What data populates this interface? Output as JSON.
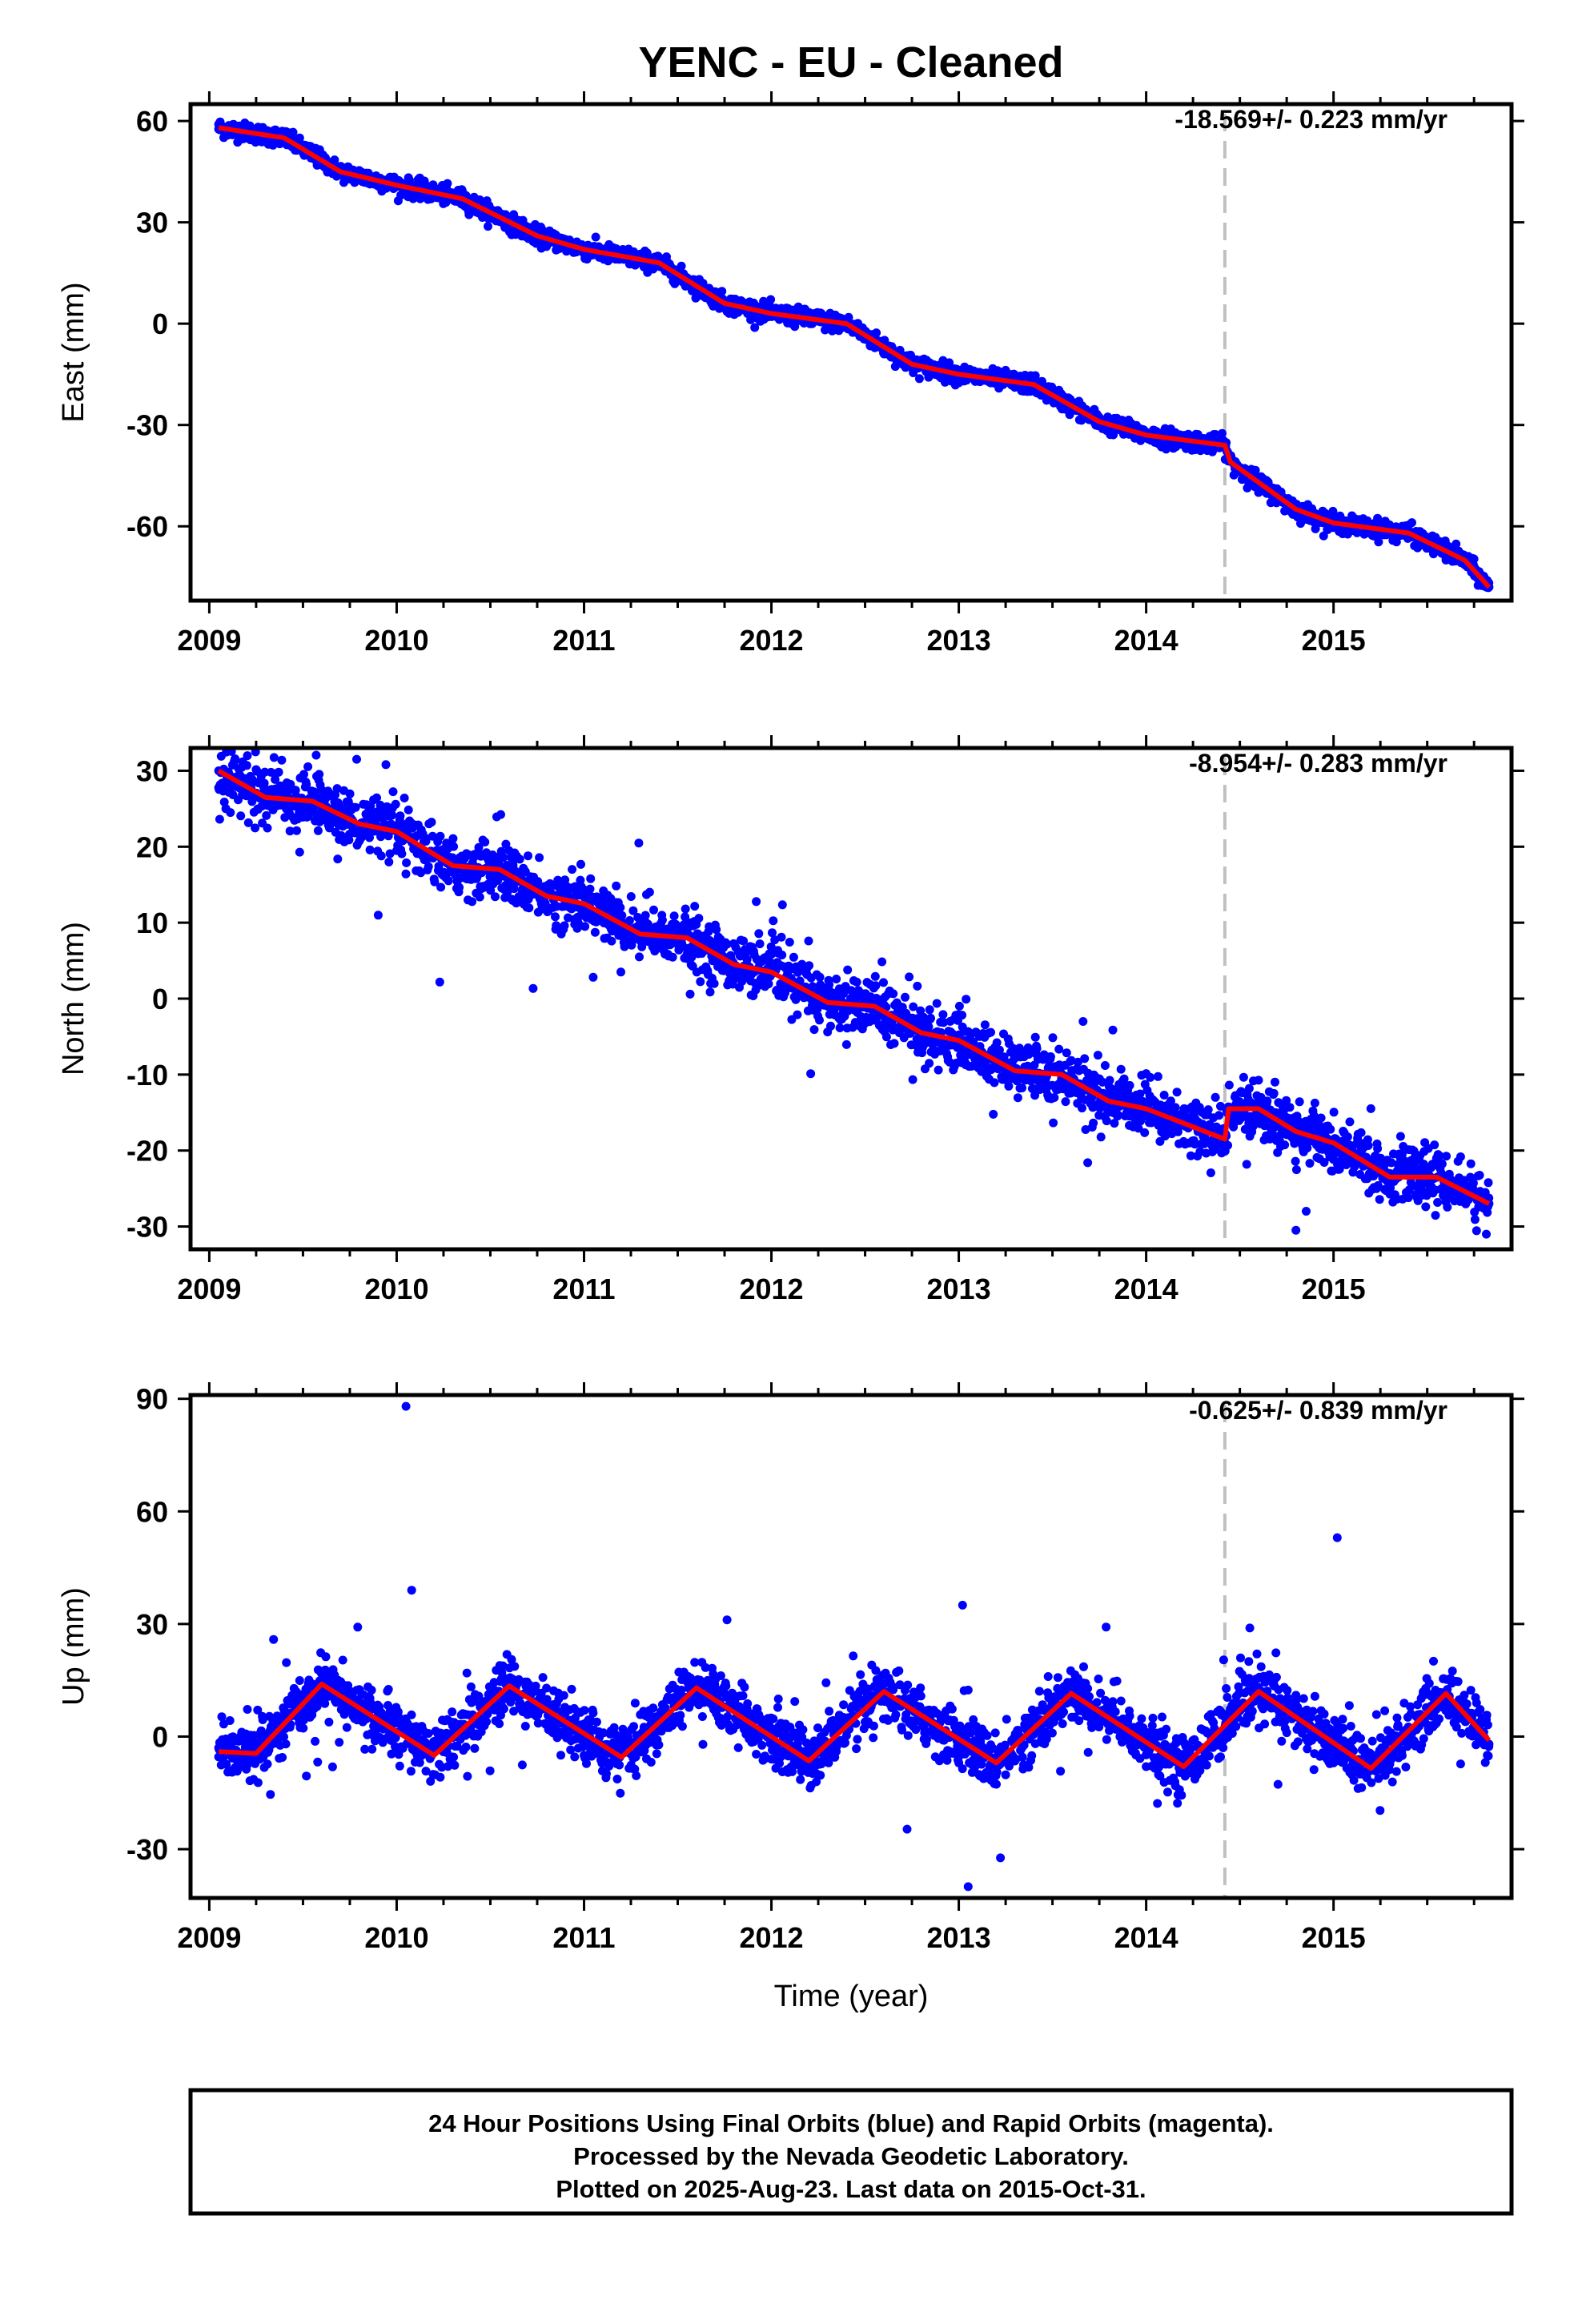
{
  "title": "YENC  - EU - Cleaned",
  "xlabel": "Time (year)",
  "footer": {
    "line1": "24 Hour Positions Using Final Orbits (blue) and Rapid Orbits (magenta).",
    "line2": "Processed by the Nevada Geodetic Laboratory.",
    "line3": "Plotted on 2025-Aug-23. Last data on 2015-Oct-31."
  },
  "colors": {
    "points": "#0000ff",
    "fit": "#ff0000",
    "break_line": "#c0c0c0",
    "frame": "#000000"
  },
  "chart_data": [
    {
      "type": "scatter",
      "component": "east",
      "ylabel": "East (mm)",
      "rate_label": "-18.569+/- 0.223 mm/yr",
      "xlim": [
        2008.9,
        2015.95
      ],
      "ylim": [
        -82,
        65
      ],
      "x_ticks": [
        2009,
        2010,
        2011,
        2012,
        2013,
        2014,
        2015
      ],
      "y_ticks": [
        60,
        30,
        0,
        -30,
        -60
      ],
      "equipment_change": 2014.42,
      "series": [
        {
          "role": "data",
          "values_sampled": [
            [
              2009.05,
              59
            ],
            [
              2009.3,
              56
            ],
            [
              2009.6,
              47
            ],
            [
              2010.0,
              41
            ],
            [
              2010.3,
              38
            ],
            [
              2010.7,
              28
            ],
            [
              2011.0,
              22
            ],
            [
              2011.3,
              19
            ],
            [
              2011.7,
              7
            ],
            [
              2012.0,
              3
            ],
            [
              2012.3,
              0
            ],
            [
              2012.7,
              -12
            ],
            [
              2013.0,
              -15
            ],
            [
              2013.3,
              -18
            ],
            [
              2013.7,
              -28
            ],
            [
              2014.0,
              -33
            ],
            [
              2014.4,
              -36
            ],
            [
              2014.6,
              -50
            ],
            [
              2015.0,
              -60
            ],
            [
              2015.3,
              -62
            ],
            [
              2015.6,
              -70
            ],
            [
              2015.83,
              -78
            ]
          ]
        },
        {
          "role": "fit",
          "values_sampled": [
            [
              2009.05,
              58
            ],
            [
              2009.4,
              55
            ],
            [
              2009.7,
              45
            ],
            [
              2010.0,
              41
            ],
            [
              2010.35,
              37
            ],
            [
              2010.75,
              26
            ],
            [
              2011.0,
              22
            ],
            [
              2011.4,
              18
            ],
            [
              2011.75,
              6
            ],
            [
              2012.0,
              3
            ],
            [
              2012.4,
              0
            ],
            [
              2012.75,
              -12
            ],
            [
              2013.0,
              -15
            ],
            [
              2013.4,
              -18
            ],
            [
              2013.75,
              -29
            ],
            [
              2014.0,
              -33
            ],
            [
              2014.42,
              -36
            ],
            [
              2014.45,
              -41
            ],
            [
              2014.8,
              -55
            ],
            [
              2015.0,
              -59
            ],
            [
              2015.4,
              -62
            ],
            [
              2015.7,
              -70
            ],
            [
              2015.83,
              -78
            ]
          ]
        }
      ]
    },
    {
      "type": "scatter",
      "component": "north",
      "ylabel": "North (mm)",
      "rate_label": "-8.954+/- 0.283 mm/yr",
      "xlim": [
        2008.9,
        2015.95
      ],
      "ylim": [
        -33,
        33
      ],
      "x_ticks": [
        2009,
        2010,
        2011,
        2012,
        2013,
        2014,
        2015
      ],
      "y_ticks": [
        30,
        20,
        10,
        0,
        -10,
        -20,
        -30
      ],
      "equipment_change": 2014.42,
      "series": [
        {
          "role": "data",
          "values_sampled": [
            [
              2009.05,
              30
            ],
            [
              2009.3,
              26
            ],
            [
              2009.6,
              26
            ],
            [
              2010.0,
              22
            ],
            [
              2010.3,
              17
            ],
            [
              2010.6,
              16
            ],
            [
              2011.0,
              12
            ],
            [
              2011.3,
              8
            ],
            [
              2011.6,
              7
            ],
            [
              2012.0,
              4
            ],
            [
              2012.3,
              -1
            ],
            [
              2012.6,
              -2
            ],
            [
              2013.0,
              -6
            ],
            [
              2013.3,
              -10
            ],
            [
              2013.6,
              -10
            ],
            [
              2014.0,
              -14
            ],
            [
              2014.4,
              -18
            ],
            [
              2014.5,
              -14
            ],
            [
              2014.8,
              -17
            ],
            [
              2015.0,
              -19
            ],
            [
              2015.3,
              -23
            ],
            [
              2015.6,
              -24
            ],
            [
              2015.83,
              -27
            ]
          ]
        },
        {
          "role": "fit",
          "values_sampled": [
            [
              2009.05,
              30
            ],
            [
              2009.3,
              26.5
            ],
            [
              2009.55,
              26
            ],
            [
              2009.8,
              23
            ],
            [
              2010.0,
              22
            ],
            [
              2010.3,
              17.5
            ],
            [
              2010.55,
              17
            ],
            [
              2010.8,
              13.5
            ],
            [
              2011.0,
              12.5
            ],
            [
              2011.3,
              8.5
            ],
            [
              2011.55,
              8
            ],
            [
              2011.8,
              4.5
            ],
            [
              2012.0,
              3.5
            ],
            [
              2012.3,
              -0.5
            ],
            [
              2012.55,
              -1
            ],
            [
              2012.8,
              -4.5
            ],
            [
              2013.0,
              -5.5
            ],
            [
              2013.3,
              -9.5
            ],
            [
              2013.55,
              -10
            ],
            [
              2013.8,
              -13.5
            ],
            [
              2014.0,
              -14.5
            ],
            [
              2014.42,
              -18.5
            ],
            [
              2014.44,
              -14.5
            ],
            [
              2014.6,
              -14.5
            ],
            [
              2014.8,
              -17.5
            ],
            [
              2015.0,
              -19
            ],
            [
              2015.3,
              -23.5
            ],
            [
              2015.55,
              -23.5
            ],
            [
              2015.83,
              -27
            ]
          ]
        }
      ]
    },
    {
      "type": "scatter",
      "component": "up",
      "ylabel": "Up (mm)",
      "rate_label": "-0.625+/- 0.839 mm/yr",
      "xlim": [
        2008.9,
        2015.95
      ],
      "ylim": [
        -43,
        91
      ],
      "x_ticks": [
        2009,
        2010,
        2011,
        2012,
        2013,
        2014,
        2015
      ],
      "y_ticks": [
        90,
        60,
        30,
        0,
        -30
      ],
      "equipment_change": 2014.42,
      "series": [
        {
          "role": "data",
          "values_sampled": [
            [
              2009.05,
              -3
            ],
            [
              2009.3,
              -3
            ],
            [
              2009.6,
              14
            ],
            [
              2010.0,
              -4
            ],
            [
              2010.05,
              88
            ],
            [
              2010.08,
              39
            ],
            [
              2010.6,
              13
            ],
            [
              2011.0,
              -5
            ],
            [
              2011.6,
              13
            ],
            [
              2012.0,
              -6
            ],
            [
              2012.6,
              12
            ],
            [
              2013.0,
              -7
            ],
            [
              2013.02,
              35
            ],
            [
              2013.05,
              -40
            ],
            [
              2013.6,
              12
            ],
            [
              2014.0,
              -8
            ],
            [
              2014.6,
              12
            ],
            [
              2015.0,
              -7
            ],
            [
              2015.02,
              53
            ],
            [
              2015.6,
              12
            ],
            [
              2015.83,
              -2
            ]
          ]
        },
        {
          "role": "fit",
          "values_sampled": [
            [
              2009.05,
              -4
            ],
            [
              2009.25,
              -4.5
            ],
            [
              2009.6,
              14
            ],
            [
              2010.2,
              -5
            ],
            [
              2010.6,
              13.5
            ],
            [
              2011.2,
              -5.5
            ],
            [
              2011.6,
              13
            ],
            [
              2012.2,
              -6.5
            ],
            [
              2012.6,
              12
            ],
            [
              2013.2,
              -7
            ],
            [
              2013.6,
              11.5
            ],
            [
              2014.2,
              -8
            ],
            [
              2014.6,
              12
            ],
            [
              2015.2,
              -8.5
            ],
            [
              2015.6,
              11.5
            ],
            [
              2015.83,
              -1
            ]
          ]
        }
      ]
    }
  ]
}
